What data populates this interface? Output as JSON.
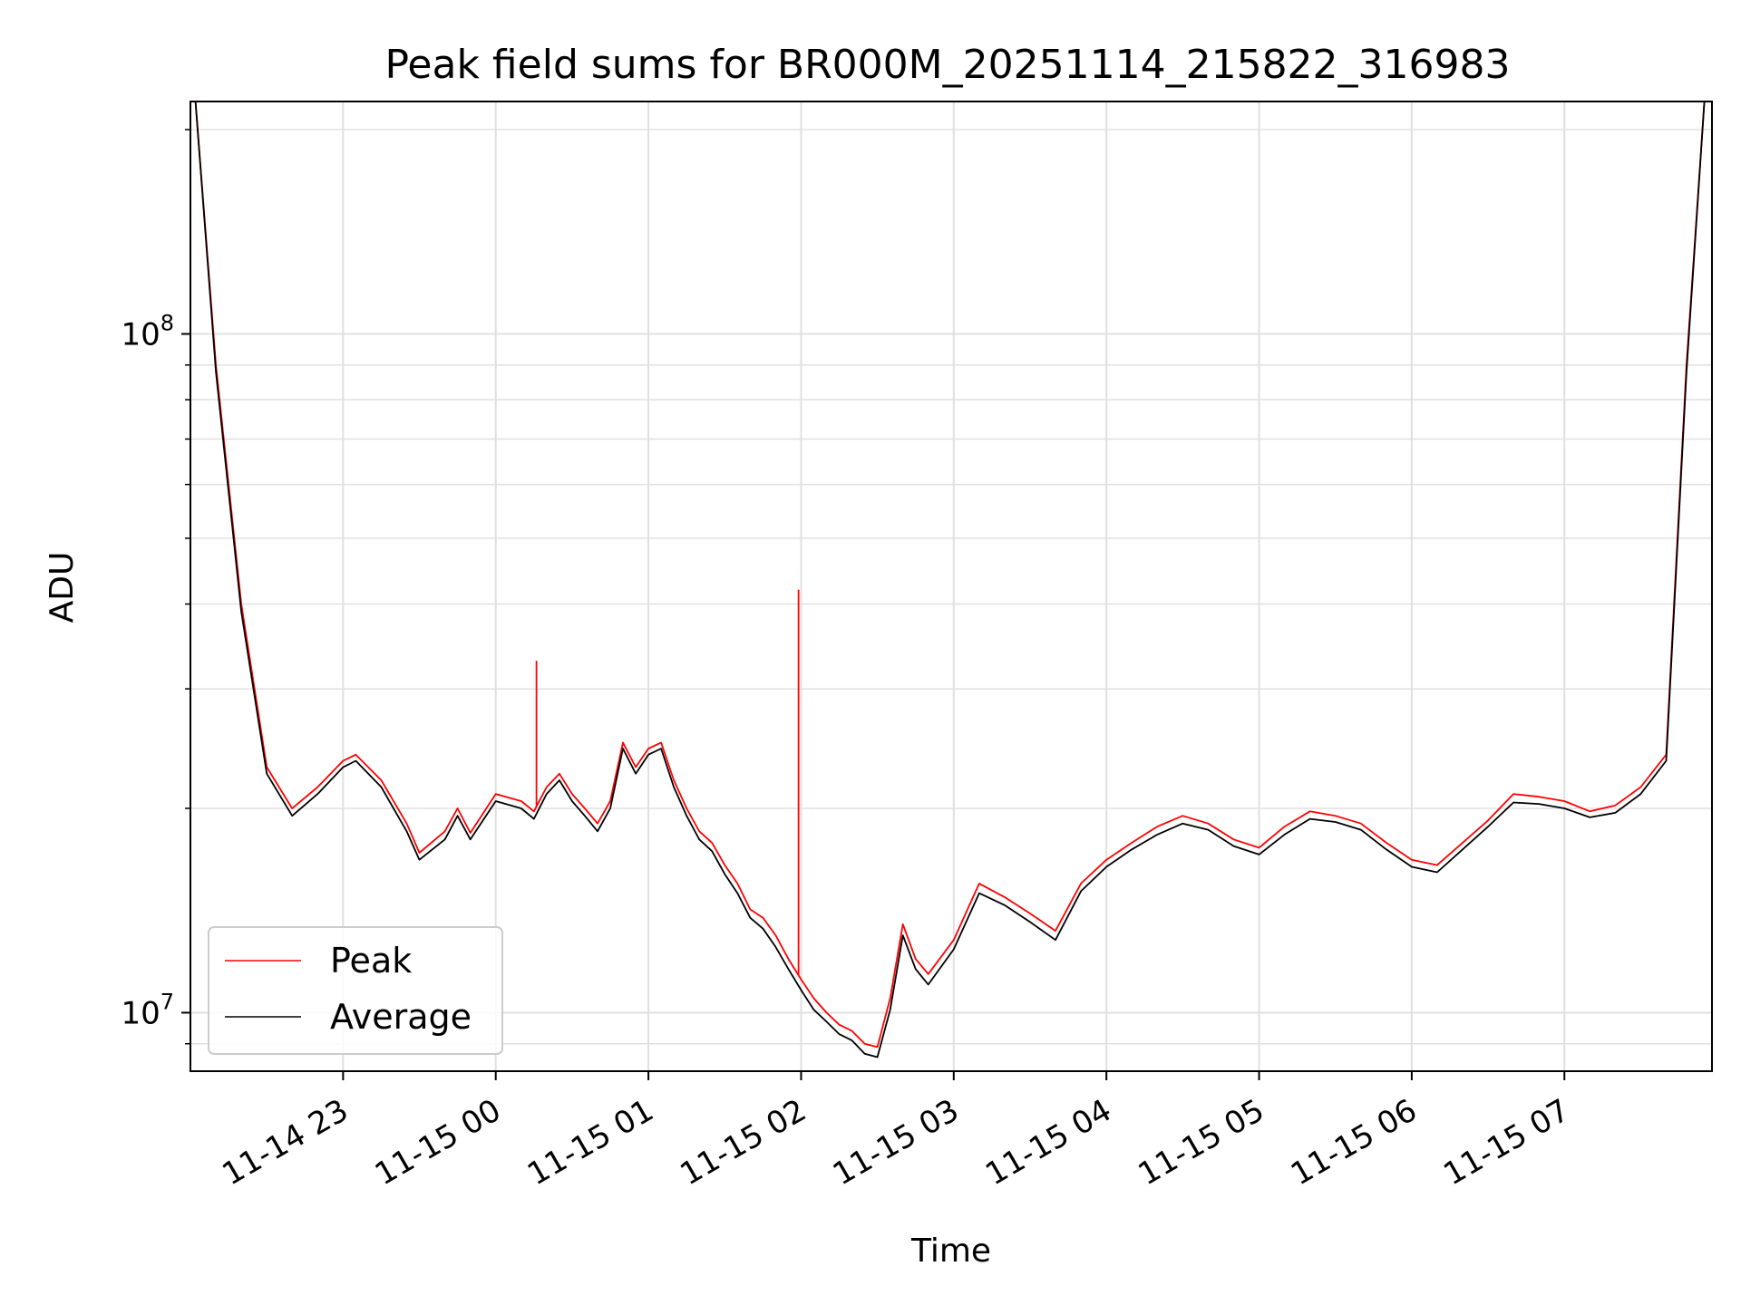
{
  "chart_data": {
    "type": "line",
    "title": "Peak field sums for BR000M_20251114_215822_316983",
    "xlabel": "Time",
    "ylabel": "ADU",
    "yscale": "log",
    "ylim": [
      8200000,
      220000000
    ],
    "xlim": [
      "11-14 22:00",
      "11-15 07:58"
    ],
    "x_ticks": [
      "11-14 23",
      "11-15 00",
      "11-15 01",
      "11-15 02",
      "11-15 03",
      "11-15 04",
      "11-15 05",
      "11-15 06",
      "11-15 07"
    ],
    "y_ticks": [
      {
        "value": 10000000,
        "base": "10",
        "exp": "7"
      },
      {
        "value": 100000000,
        "base": "10",
        "exp": "8"
      }
    ],
    "grid": true,
    "legend_position": "lower-left",
    "x": [
      "11-14 22:02",
      "11-14 22:10",
      "11-14 22:20",
      "11-14 22:30",
      "11-14 22:40",
      "11-14 22:50",
      "11-14 23:00",
      "11-14 23:05",
      "11-14 23:15",
      "11-14 23:25",
      "11-14 23:30",
      "11-14 23:40",
      "11-14 23:45",
      "11-14 23:50",
      "11-15 00:00",
      "11-15 00:10",
      "11-15 00:15",
      "11-15 00:20",
      "11-15 00:25",
      "11-15 00:30",
      "11-15 00:35",
      "11-15 00:40",
      "11-15 00:45",
      "11-15 00:50",
      "11-15 00:55",
      "11-15 01:00",
      "11-15 01:05",
      "11-15 01:10",
      "11-15 01:15",
      "11-15 01:20",
      "11-15 01:25",
      "11-15 01:30",
      "11-15 01:35",
      "11-15 01:40",
      "11-15 01:45",
      "11-15 01:50",
      "11-15 01:55",
      "11-15 02:00",
      "11-15 02:05",
      "11-15 02:10",
      "11-15 02:15",
      "11-15 02:20",
      "11-15 02:25",
      "11-15 02:30",
      "11-15 02:35",
      "11-15 02:40",
      "11-15 02:45",
      "11-15 02:50",
      "11-15 03:00",
      "11-15 03:10",
      "11-15 03:20",
      "11-15 03:30",
      "11-15 03:40",
      "11-15 03:50",
      "11-15 04:00",
      "11-15 04:10",
      "11-15 04:20",
      "11-15 04:30",
      "11-15 04:40",
      "11-15 04:50",
      "11-15 05:00",
      "11-15 05:10",
      "11-15 05:20",
      "11-15 05:30",
      "11-15 05:40",
      "11-15 05:50",
      "11-15 06:00",
      "11-15 06:10",
      "11-15 06:20",
      "11-15 06:30",
      "11-15 06:40",
      "11-15 06:50",
      "11-15 07:00",
      "11-15 07:10",
      "11-15 07:20",
      "11-15 07:30",
      "11-15 07:40",
      "11-15 07:48",
      "11-15 07:55"
    ],
    "series": [
      {
        "name": "Peak",
        "color": "#ff0000",
        "values": [
          220000000,
          90000000,
          40000000,
          23000000,
          20000000,
          21500000,
          23500000,
          24000000,
          22000000,
          19000000,
          17200000,
          18500000,
          20000000,
          18400000,
          21000000,
          20500000,
          19800000,
          21500000,
          22500000,
          21000000,
          20000000,
          19000000,
          20500000,
          25000000,
          23000000,
          24500000,
          25000000,
          22000000,
          20000000,
          18500000,
          17800000,
          16500000,
          15500000,
          14200000,
          13800000,
          13000000,
          12000000,
          11200000,
          10500000,
          10000000,
          9600000,
          9400000,
          9000000,
          8900000,
          10500000,
          13500000,
          12000000,
          11400000,
          12800000,
          15500000,
          14800000,
          14000000,
          13200000,
          15500000,
          16800000,
          17800000,
          18800000,
          19500000,
          19000000,
          18000000,
          17500000,
          18800000,
          19800000,
          19500000,
          19000000,
          17800000,
          16800000,
          16500000,
          17800000,
          19200000,
          21000000,
          20800000,
          20500000,
          19800000,
          20200000,
          21500000,
          24000000,
          90000000,
          220000000
        ]
      },
      {
        "name": "Average",
        "color": "#000000",
        "values": [
          220000000,
          88000000,
          39000000,
          22500000,
          19500000,
          21000000,
          23000000,
          23500000,
          21500000,
          18500000,
          16800000,
          18000000,
          19500000,
          18000000,
          20500000,
          20000000,
          19300000,
          21000000,
          22000000,
          20500000,
          19500000,
          18500000,
          20000000,
          24500000,
          22500000,
          24000000,
          24500000,
          21500000,
          19500000,
          18000000,
          17300000,
          16000000,
          15000000,
          13800000,
          13300000,
          12500000,
          11600000,
          10800000,
          10100000,
          9700000,
          9300000,
          9100000,
          8700000,
          8600000,
          10100000,
          13000000,
          11600000,
          11000000,
          12400000,
          15000000,
          14400000,
          13600000,
          12800000,
          15100000,
          16400000,
          17400000,
          18300000,
          19000000,
          18600000,
          17600000,
          17100000,
          18300000,
          19300000,
          19100000,
          18600000,
          17400000,
          16400000,
          16100000,
          17400000,
          18800000,
          20400000,
          20300000,
          20000000,
          19400000,
          19700000,
          21000000,
          23500000,
          88000000,
          220000000
        ]
      }
    ],
    "spikes": [
      {
        "series": "Peak",
        "x": "11-15 00:16",
        "value": 33000000
      },
      {
        "series": "Peak",
        "x": "11-15 01:59",
        "value": 42000000
      }
    ]
  }
}
